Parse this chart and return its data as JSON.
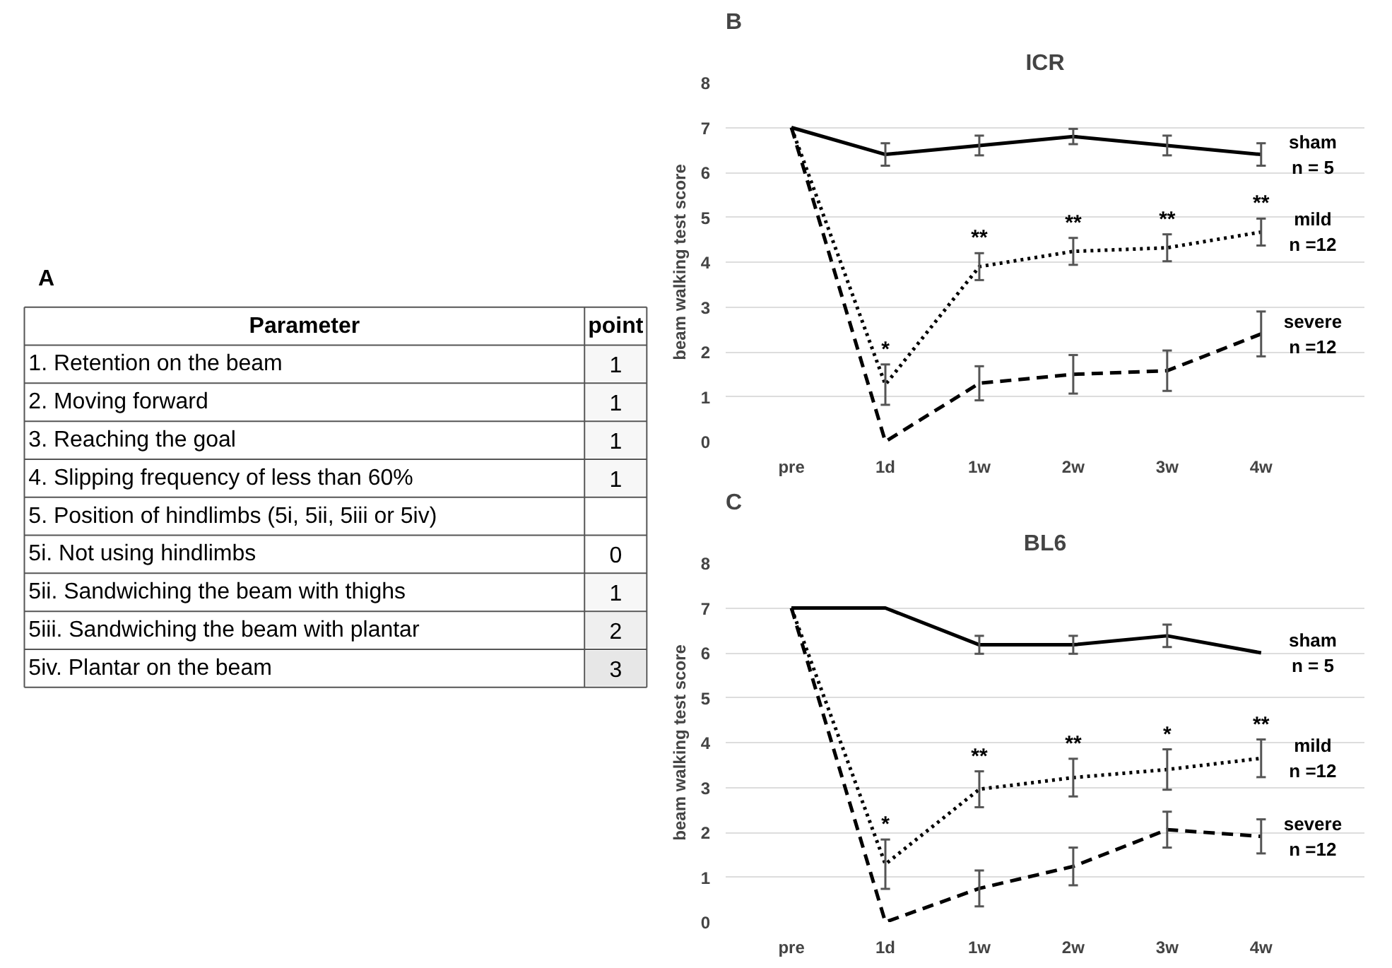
{
  "chart_data": [
    {
      "type": "heatmap",
      "title": "A",
      "ylabel": "Parameter",
      "categories": [
        "point"
      ],
      "y_categories": [
        "1. Retention on the beam",
        "2. Moving forward",
        "3. Reaching the goal",
        "4. Slipping frequency of less than 60%",
        "5. Position of hindlimbs (5i, 5ii, 5iii or 5iv)",
        "5i. Not using hindlimbs",
        "5ii. Sandwiching the beam with thighs",
        "5iii. Sandwiching the beam with plantar",
        "5iv. Plantar on the beam"
      ],
      "cells": [
        [
          1
        ],
        [
          1
        ],
        [
          1
        ],
        [
          1
        ],
        [
          null
        ],
        [
          0
        ],
        [
          1
        ],
        [
          2
        ],
        [
          3
        ]
      ],
      "cell_labels": [
        [
          "1"
        ],
        [
          "1"
        ],
        [
          "1"
        ],
        [
          "1"
        ],
        [
          null
        ],
        [
          "0"
        ],
        [
          "1"
        ],
        [
          "2"
        ],
        [
          "3"
        ]
      ]
    },
    {
      "type": "line",
      "title": "ICR",
      "ylabel": "beam walking test score",
      "categories": [
        "pre",
        "1d",
        "1w",
        "2w",
        "3w",
        "4w"
      ],
      "ylim": [
        0,
        8
      ],
      "yticks": [
        0,
        1,
        2,
        3,
        4,
        5,
        6,
        7,
        8
      ],
      "grid": "y",
      "marker": "none",
      "series": [
        {
          "name": "sham\nn = 5",
          "color": "#000000",
          "line_style": "solid",
          "values": [
            7,
            6.4,
            6.6,
            6.8,
            6.6,
            6.4
          ],
          "errors": [
            null,
            0.25,
            0.22,
            0.17,
            0.22,
            0.25
          ]
        },
        {
          "name": "mild\nn =12",
          "color": "#000000",
          "line_style": "dotted",
          "values": [
            7,
            1.27,
            3.9,
            4.24,
            4.32,
            4.67
          ],
          "errors": [
            null,
            0.45,
            0.3,
            0.3,
            0.3,
            0.3
          ],
          "value_labels": [
            null,
            "*",
            "**",
            "**",
            "**",
            "**"
          ]
        },
        {
          "name": "severe\nn =12",
          "color": "#000000",
          "line_style": "dashed",
          "values": [
            7,
            0,
            1.3,
            1.5,
            1.58,
            2.4
          ],
          "errors": [
            null,
            null,
            0.38,
            0.43,
            0.45,
            0.5
          ]
        }
      ],
      "annotations": [
        "B"
      ]
    },
    {
      "type": "line",
      "title": "BL6",
      "ylabel": "beam walking test score",
      "categories": [
        "pre",
        "1d",
        "1w",
        "2w",
        "3w",
        "4w"
      ],
      "ylim": [
        0,
        8
      ],
      "yticks": [
        0,
        1,
        2,
        3,
        4,
        5,
        6,
        7,
        8
      ],
      "grid": "y",
      "marker": "none",
      "series": [
        {
          "name": "sham\nn = 5",
          "color": "#000000",
          "line_style": "solid",
          "values": [
            7,
            7,
            6.18,
            6.18,
            6.38,
            6.0
          ],
          "errors": [
            null,
            null,
            0.2,
            0.2,
            0.25,
            null
          ]
        },
        {
          "name": "mild\nn =12",
          "color": "#000000",
          "line_style": "dotted",
          "values": [
            7,
            1.29,
            2.96,
            3.22,
            3.4,
            3.65
          ],
          "errors": [
            null,
            0.55,
            0.4,
            0.42,
            0.45,
            0.42
          ],
          "value_labels": [
            null,
            "*",
            "**",
            "**",
            "*",
            "**"
          ]
        },
        {
          "name": "severe\nn =12",
          "color": "#000000",
          "line_style": "dashed",
          "values": [
            7,
            0,
            0.75,
            1.24,
            2.06,
            1.91
          ],
          "errors": [
            null,
            null,
            0.4,
            0.42,
            0.4,
            0.38
          ]
        }
      ],
      "annotations": [
        "C"
      ]
    }
  ]
}
